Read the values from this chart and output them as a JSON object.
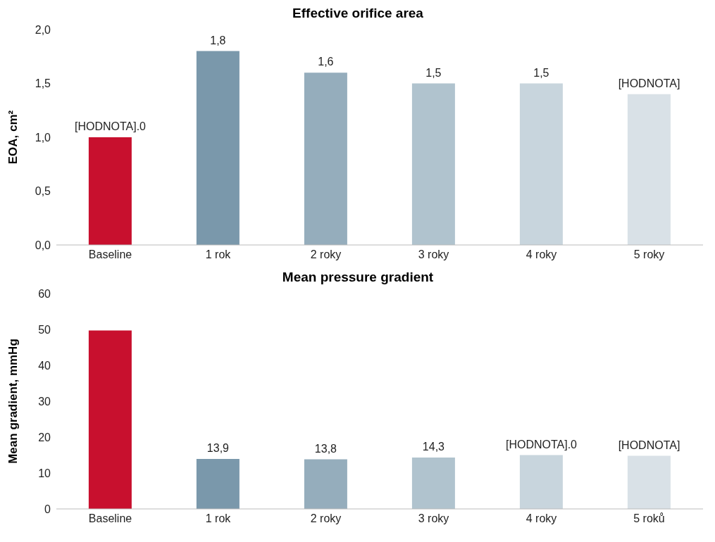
{
  "chart_data": [
    {
      "type": "bar",
      "title": "Effective orifice area",
      "ylabel": "EOA, cm²",
      "categories": [
        "Baseline",
        "1 rok",
        "2 roky",
        "3 roky",
        "4 roky",
        "5 roky"
      ],
      "values": [
        1.0,
        1.8,
        1.6,
        1.5,
        1.5,
        1.4
      ],
      "colors": [
        "#c8102e",
        "#7a98ab",
        "#95adbc",
        "#b0c3ce",
        "#c8d5dd",
        "#d9e1e7"
      ],
      "value_labels": [
        null,
        "1,8",
        "1,6",
        "1,5",
        "1,5",
        null
      ],
      "annotations": [
        {
          "text": "[HODNOTA].0",
          "x": "Baseline",
          "y": 1.0
        },
        {
          "text": "[HODNOTA]",
          "x": "5 roky",
          "y": 1.4
        }
      ],
      "ylim": [
        0,
        2
      ],
      "yticks": [
        {
          "value": 0,
          "label": "0,0"
        },
        {
          "value": 0.5,
          "label": "0,5"
        },
        {
          "value": 1,
          "label": "1,0"
        },
        {
          "value": 1.5,
          "label": "1,5"
        },
        {
          "value": 2,
          "label": "2,0"
        }
      ]
    },
    {
      "type": "bar",
      "title": "Mean pressure gradient",
      "ylabel": "Mean gradient, mmHg",
      "categories": [
        "Baseline",
        "1 rok",
        "2 roky",
        "3 roky",
        "4 roky",
        "5 roků"
      ],
      "values": [
        49.7,
        13.9,
        13.8,
        14.3,
        15.0,
        14.8
      ],
      "colors": [
        "#c8102e",
        "#7a98ab",
        "#95adbc",
        "#b0c3ce",
        "#c8d5dd",
        "#d9e1e7"
      ],
      "value_labels": [
        null,
        "13,9",
        "13,8",
        "14,3",
        null,
        null
      ],
      "annotations": [
        {
          "text": "[HODNOTA].0",
          "x": "4 roky",
          "y": 15.0
        },
        {
          "text": "[HODNOTA]",
          "x": "5 roků",
          "y": 14.8
        }
      ],
      "ylim": [
        0,
        60
      ],
      "yticks": [
        0,
        10,
        20,
        30,
        40,
        50,
        60
      ]
    }
  ]
}
